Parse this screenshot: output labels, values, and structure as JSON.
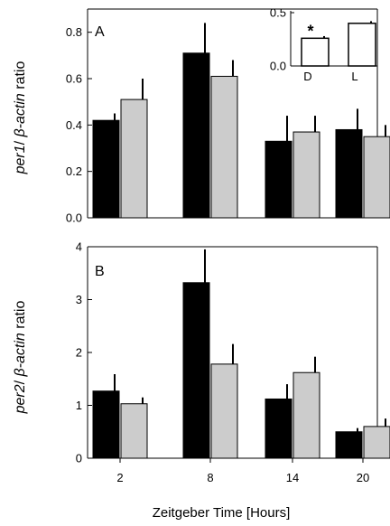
{
  "chart_data": [
    {
      "type": "bar",
      "panel_label": "A",
      "ylabel_gene": "per1",
      "ylabel_sep": "/ ",
      "ylabel_ref": "β-actin",
      "ylabel_suffix": " ratio",
      "ylim": [
        0,
        0.9
      ],
      "yticks": [
        "0.0",
        "0.2",
        "0.4",
        "0.6",
        "0.8"
      ],
      "ytick_values": [
        0,
        0.2,
        0.4,
        0.6,
        0.8
      ],
      "categories": [
        "2",
        "8",
        "14",
        "20"
      ],
      "series": [
        {
          "color": "#000000",
          "values": [
            0.42,
            0.71,
            0.33,
            0.38
          ],
          "errors": [
            0.03,
            0.13,
            0.11,
            0.09
          ]
        },
        {
          "color": "#cccccc",
          "values": [
            0.51,
            0.61,
            0.37,
            0.35
          ],
          "errors": [
            0.09,
            0.07,
            0.07,
            0.05
          ]
        }
      ],
      "inset": {
        "type": "bar",
        "categories": [
          "D",
          "L"
        ],
        "values": [
          0.26,
          0.4
        ],
        "errors": [
          0.02,
          0.02
        ],
        "color": "#ffffff",
        "ylim": [
          0,
          0.5
        ],
        "yticks": [
          "0.0",
          "0.5"
        ],
        "ytick_values": [
          0,
          0.5
        ],
        "annotation": "*"
      }
    },
    {
      "type": "bar",
      "panel_label": "B",
      "ylabel_gene": "per2",
      "ylabel_sep": "/ ",
      "ylabel_ref": "β-actin",
      "ylabel_suffix": " ratio",
      "ylim": [
        0,
        4
      ],
      "yticks": [
        "0",
        "1",
        "2",
        "3",
        "4"
      ],
      "ytick_values": [
        0,
        1,
        2,
        3,
        4
      ],
      "categories": [
        "2",
        "8",
        "14",
        "20"
      ],
      "series": [
        {
          "color": "#000000",
          "values": [
            1.27,
            3.32,
            1.12,
            0.5
          ],
          "errors": [
            0.32,
            0.63,
            0.28,
            0.07
          ]
        },
        {
          "color": "#cccccc",
          "values": [
            1.03,
            1.78,
            1.62,
            0.6
          ],
          "errors": [
            0.12,
            0.38,
            0.3,
            0.15
          ]
        }
      ],
      "xlabel": "Zeitgeber Time [Hours]"
    }
  ]
}
